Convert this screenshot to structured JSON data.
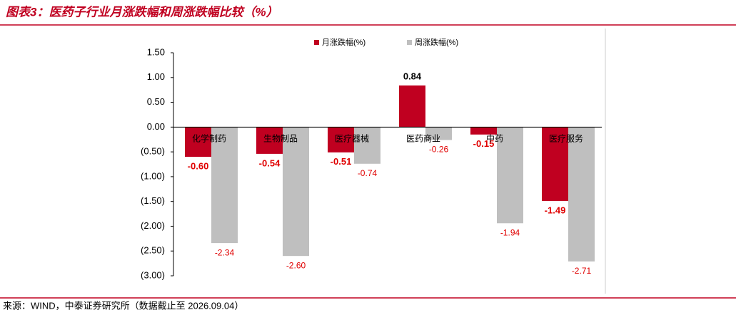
{
  "chart_data": {
    "type": "bar",
    "title": "图表3：医药子行业月涨跌幅和周涨跌幅比较（%）",
    "source": "来源：WIND，中泰证券研究所（数据截止至 2026.09.04）",
    "categories": [
      "化学制药",
      "生物制品",
      "医疗器械",
      "医药商业",
      "中药",
      "医疗服务"
    ],
    "series": [
      {
        "name": "月涨跌幅(%)",
        "color": "#c00020",
        "values": [
          -0.6,
          -0.54,
          -0.51,
          0.84,
          -0.15,
          -1.49
        ],
        "value_labels": [
          "-0.60",
          "-0.54",
          "-0.51",
          "0.84",
          "-0.15",
          "-1.49"
        ]
      },
      {
        "name": "周涨跌幅(%)",
        "color": "#bfbfbf",
        "values": [
          -2.34,
          -2.6,
          -0.74,
          -0.26,
          -1.94,
          -2.71
        ],
        "value_labels": [
          "-2.34",
          "-2.60",
          "-0.74",
          "-0.26",
          "-1.94",
          "-2.71"
        ]
      }
    ],
    "ylim": [
      -3,
      1.5
    ],
    "yticks": [
      {
        "value": 1.5,
        "label": "1.50"
      },
      {
        "value": 1,
        "label": "1.00"
      },
      {
        "value": 0.5,
        "label": "0.50"
      },
      {
        "value": 0,
        "label": "0.00"
      },
      {
        "value": -0.5,
        "label": "(0.50)"
      },
      {
        "value": -1,
        "label": "(1.00)"
      },
      {
        "value": -1.5,
        "label": "(1.50)"
      },
      {
        "value": -2,
        "label": "(2.00)"
      },
      {
        "value": -2.5,
        "label": "(2.50)"
      },
      {
        "value": -3,
        "label": "(3.00)"
      }
    ],
    "grid": false
  }
}
